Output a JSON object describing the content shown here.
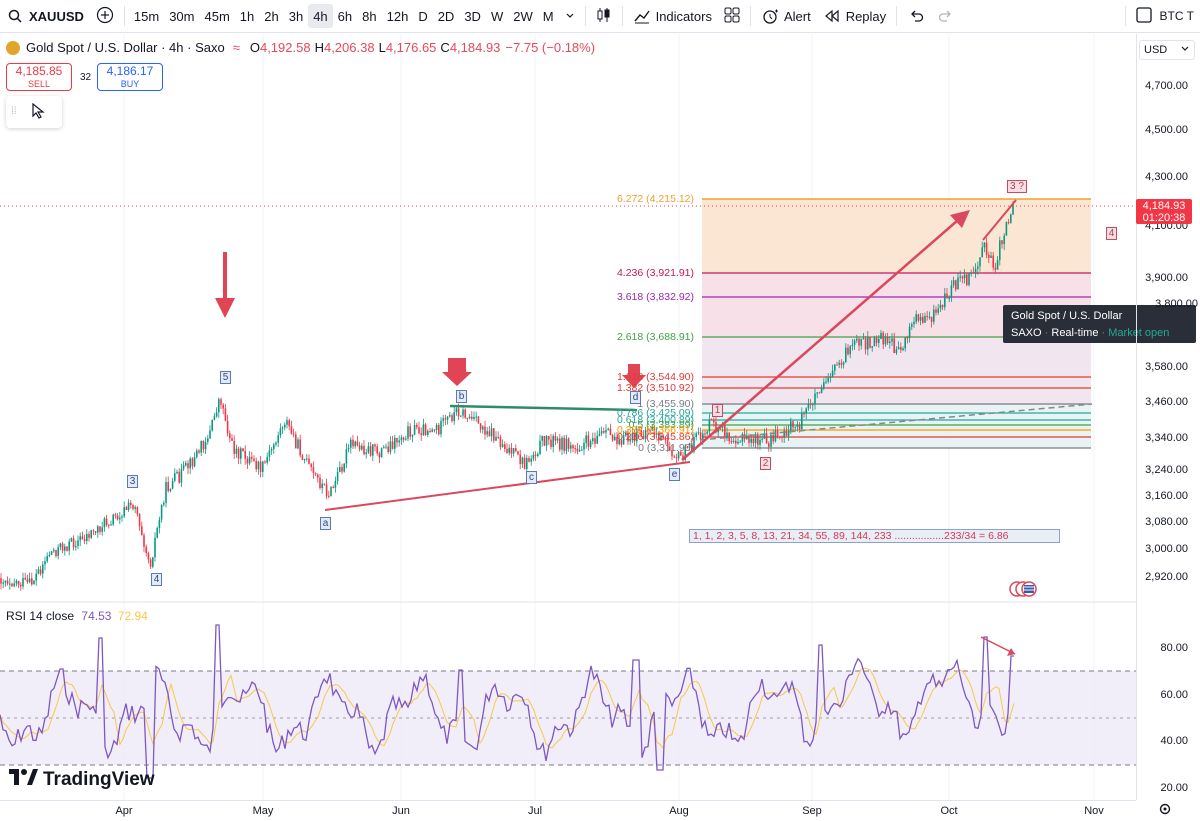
{
  "toolbar": {
    "symbol": "XAUUSD",
    "timeframes": [
      "15m",
      "30m",
      "45m",
      "1h",
      "2h",
      "3h",
      "4h",
      "6h",
      "8h",
      "12h",
      "D",
      "2D",
      "3D",
      "W",
      "2W",
      "M"
    ],
    "active_timeframe": "4h",
    "indicators_label": "Indicators",
    "alert_label": "Alert",
    "replay_label": "Replay",
    "right_symbol": "BTC T"
  },
  "legend": {
    "title": "Gold Spot / U.S. Dollar · 4h · Saxo",
    "o_key": "O",
    "o_val": "4,192.58",
    "h_key": "H",
    "h_val": "4,206.38",
    "l_key": "L",
    "l_val": "4,176.65",
    "c_key": "C",
    "c_val": "4,184.93",
    "change": "−7.75 (−0.18%)"
  },
  "trade": {
    "sell_price": "4,185.85",
    "sell_label": "SELL",
    "spread": "32",
    "buy_price": "4,186.17",
    "buy_label": "BUY"
  },
  "price_axis": {
    "currency": "USD",
    "labels": [
      "4,700.00",
      "4,500.00",
      "4,300.00",
      "4,100.00",
      "3,900.00",
      "3,800.00",
      "3,580.00",
      "3,460.00",
      "3,340.00",
      "3,240.00",
      "3,160.00",
      "3,080.00",
      "3,000.00",
      "2,920.00"
    ],
    "last_price": "4,184.93",
    "countdown": "01:20:38",
    "rsi_labels": [
      "80.00",
      "60.00",
      "40.00",
      "20.00"
    ]
  },
  "time_axis": {
    "labels": [
      "Apr",
      "May",
      "Jun",
      "Jul",
      "Aug",
      "Sep",
      "Oct",
      "Nov"
    ]
  },
  "fib_levels": [
    {
      "label": "6.272 (4,215.12)",
      "color": "#f0a030"
    },
    {
      "label": "4.236 (3,921.91)",
      "color": "#c2185b"
    },
    {
      "label": "3.618 (3,832.92)",
      "color": "#9c27b0"
    },
    {
      "label": "2.618 (3,688.91)",
      "color": "#43a047"
    },
    {
      "label": "1.618 (3,544.90)",
      "color": "#e53935"
    },
    {
      "label": "1.382 (3,510.92)",
      "color": "#e53935"
    },
    {
      "label": "1 (3,455.90)",
      "color": "#787b86"
    },
    {
      "label": "0.786 (3,425.09)",
      "color": "#26a69a"
    },
    {
      "label": "0.618 (3,400.89)",
      "color": "#26a69a"
    },
    {
      "label": "0.5 (3,383.89)",
      "color": "#43a047"
    },
    {
      "label": "0.382 (3,366.91)",
      "color": "#ff9800"
    },
    {
      "label": "0.236 (3,345.86)",
      "color": "#e53935"
    },
    {
      "label": "0 (3,311.90)",
      "color": "#787b86"
    }
  ],
  "wave_labels": {
    "w5": "5",
    "w3": "3",
    "w4": "4",
    "wa": "a",
    "wb": "b",
    "wc": "c",
    "wd": "d",
    "we": "e",
    "n1": "1",
    "n2": "2",
    "n3": "3 ?",
    "n4": "4"
  },
  "fib_sequence_note": "1, 1, 2, 3, 5, 8, 13, 21, 34, 55, 89, 144, 233 .................233/34 = 6.86",
  "tooltip": {
    "title": "Gold Spot / U.S. Dollar",
    "source": "SAXO",
    "status": "Real-time",
    "market": "Market open"
  },
  "rsi": {
    "label": "RSI 14 close",
    "value1": "74.53",
    "value2": "72.94",
    "color1": "#7e57c2",
    "color2": "#f7c948"
  },
  "brand": "TradingView",
  "colors": {
    "up": "#089981",
    "down": "#f23645",
    "rsi_line": "#7e57c2"
  }
}
